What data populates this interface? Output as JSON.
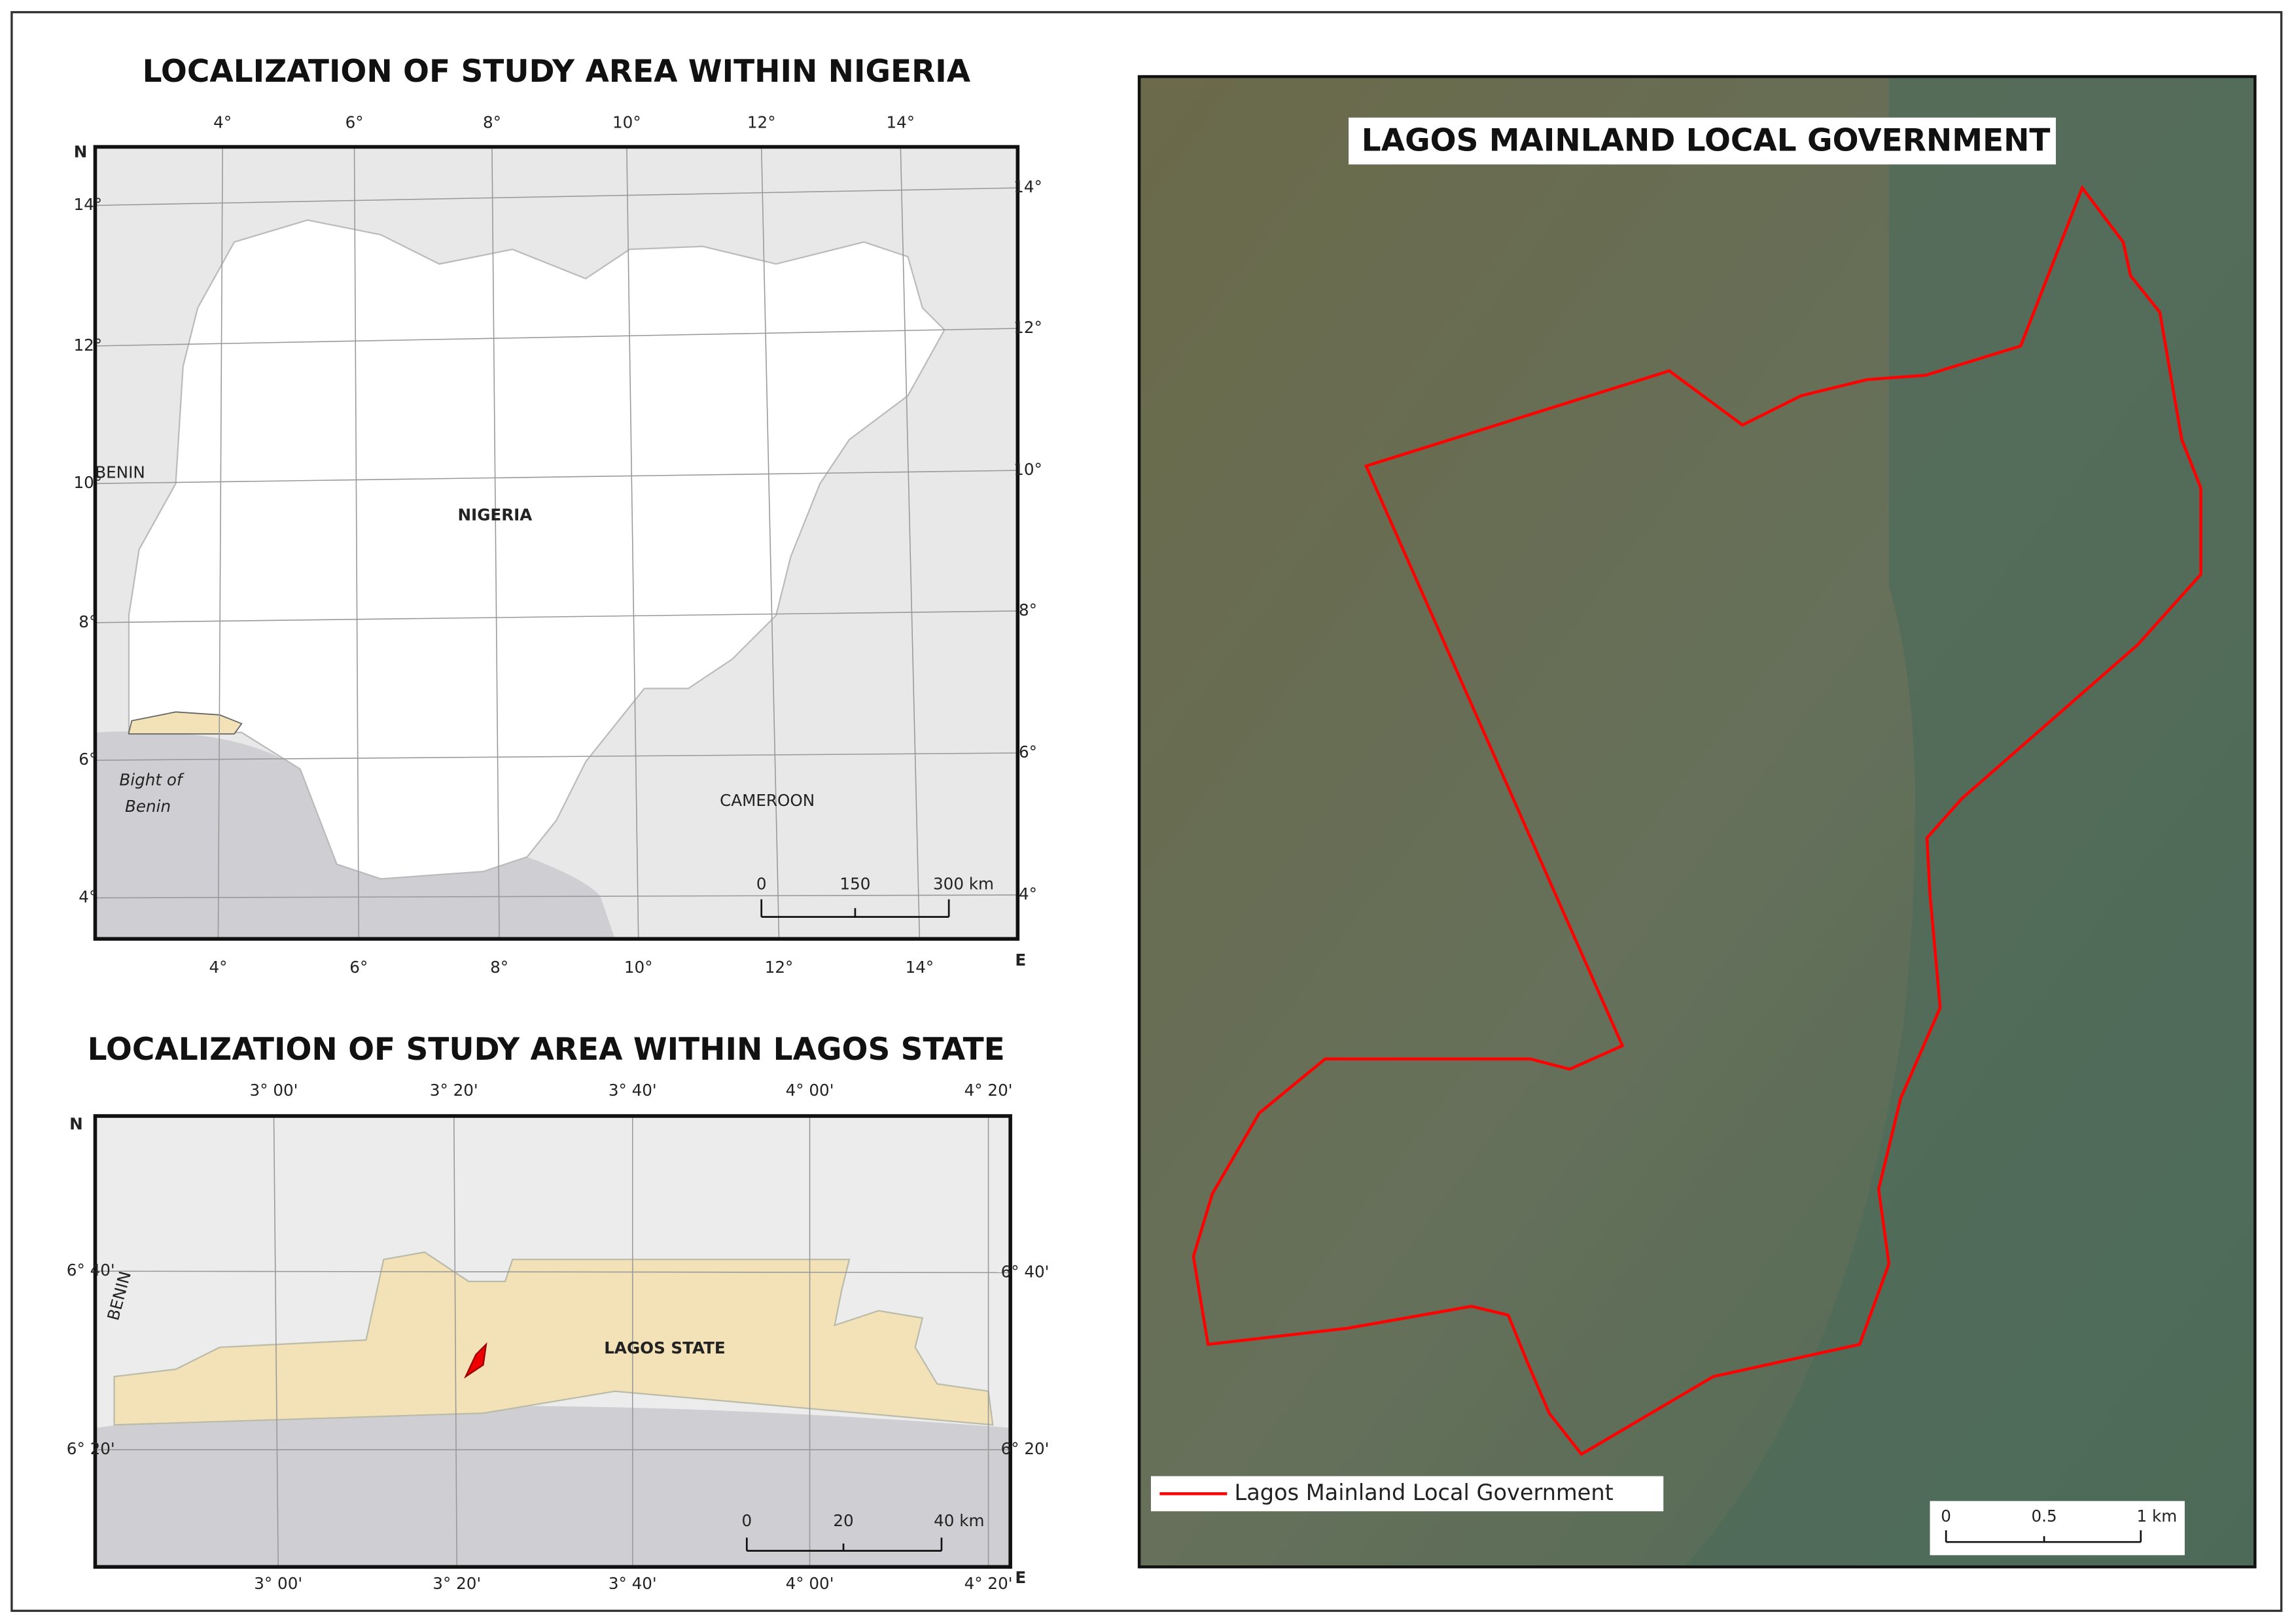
{
  "nigeria_map": {
    "title": "LOCALIZATION OF STUDY AREA WITHIN NIGERIA",
    "north": "N",
    "east": "E",
    "top_ticks": [
      "4°",
      "6°",
      "8°",
      "10°",
      "12°",
      "14°"
    ],
    "bottom_ticks": [
      "4°",
      "6°",
      "8°",
      "10°",
      "12°",
      "14°"
    ],
    "left_ticks": [
      "14°",
      "12°",
      "10°",
      "8°",
      "6°",
      "4°"
    ],
    "right_ticks": [
      "14°",
      "12°",
      "10°",
      "8°",
      "6°",
      "4°"
    ],
    "country_label": "NIGERIA",
    "benin_label": "BENIN",
    "bight_label": [
      "Bight of",
      "Benin"
    ],
    "cameroon_label": "CAMEROON",
    "scale_labels": [
      "0",
      "150",
      "300 km"
    ]
  },
  "lagos_map": {
    "title": "LOCALIZATION OF STUDY AREA WITHIN LAGOS STATE",
    "north": "N",
    "east": "E",
    "top_ticks": [
      "3° 00'",
      "3° 20'",
      "3° 40'",
      "4° 00'",
      "4° 20'"
    ],
    "bottom_ticks": [
      "3° 00'",
      "3° 20'",
      "3° 40'",
      "4° 00'",
      "4° 20'"
    ],
    "left_ticks": [
      "6° 40'",
      "6° 20'"
    ],
    "right_ticks": [
      "6° 40'",
      "6° 20'"
    ],
    "state_label": "LAGOS STATE",
    "benin_label": "BENIN",
    "scale_labels": [
      "0",
      "20",
      "40 km"
    ]
  },
  "mainland_map": {
    "title": "LAGOS MAINLAND LOCAL GOVERNMENT",
    "legend_label": "Lagos Mainland Local Government",
    "scale_labels": [
      "0",
      "0.5",
      "1 km"
    ]
  }
}
